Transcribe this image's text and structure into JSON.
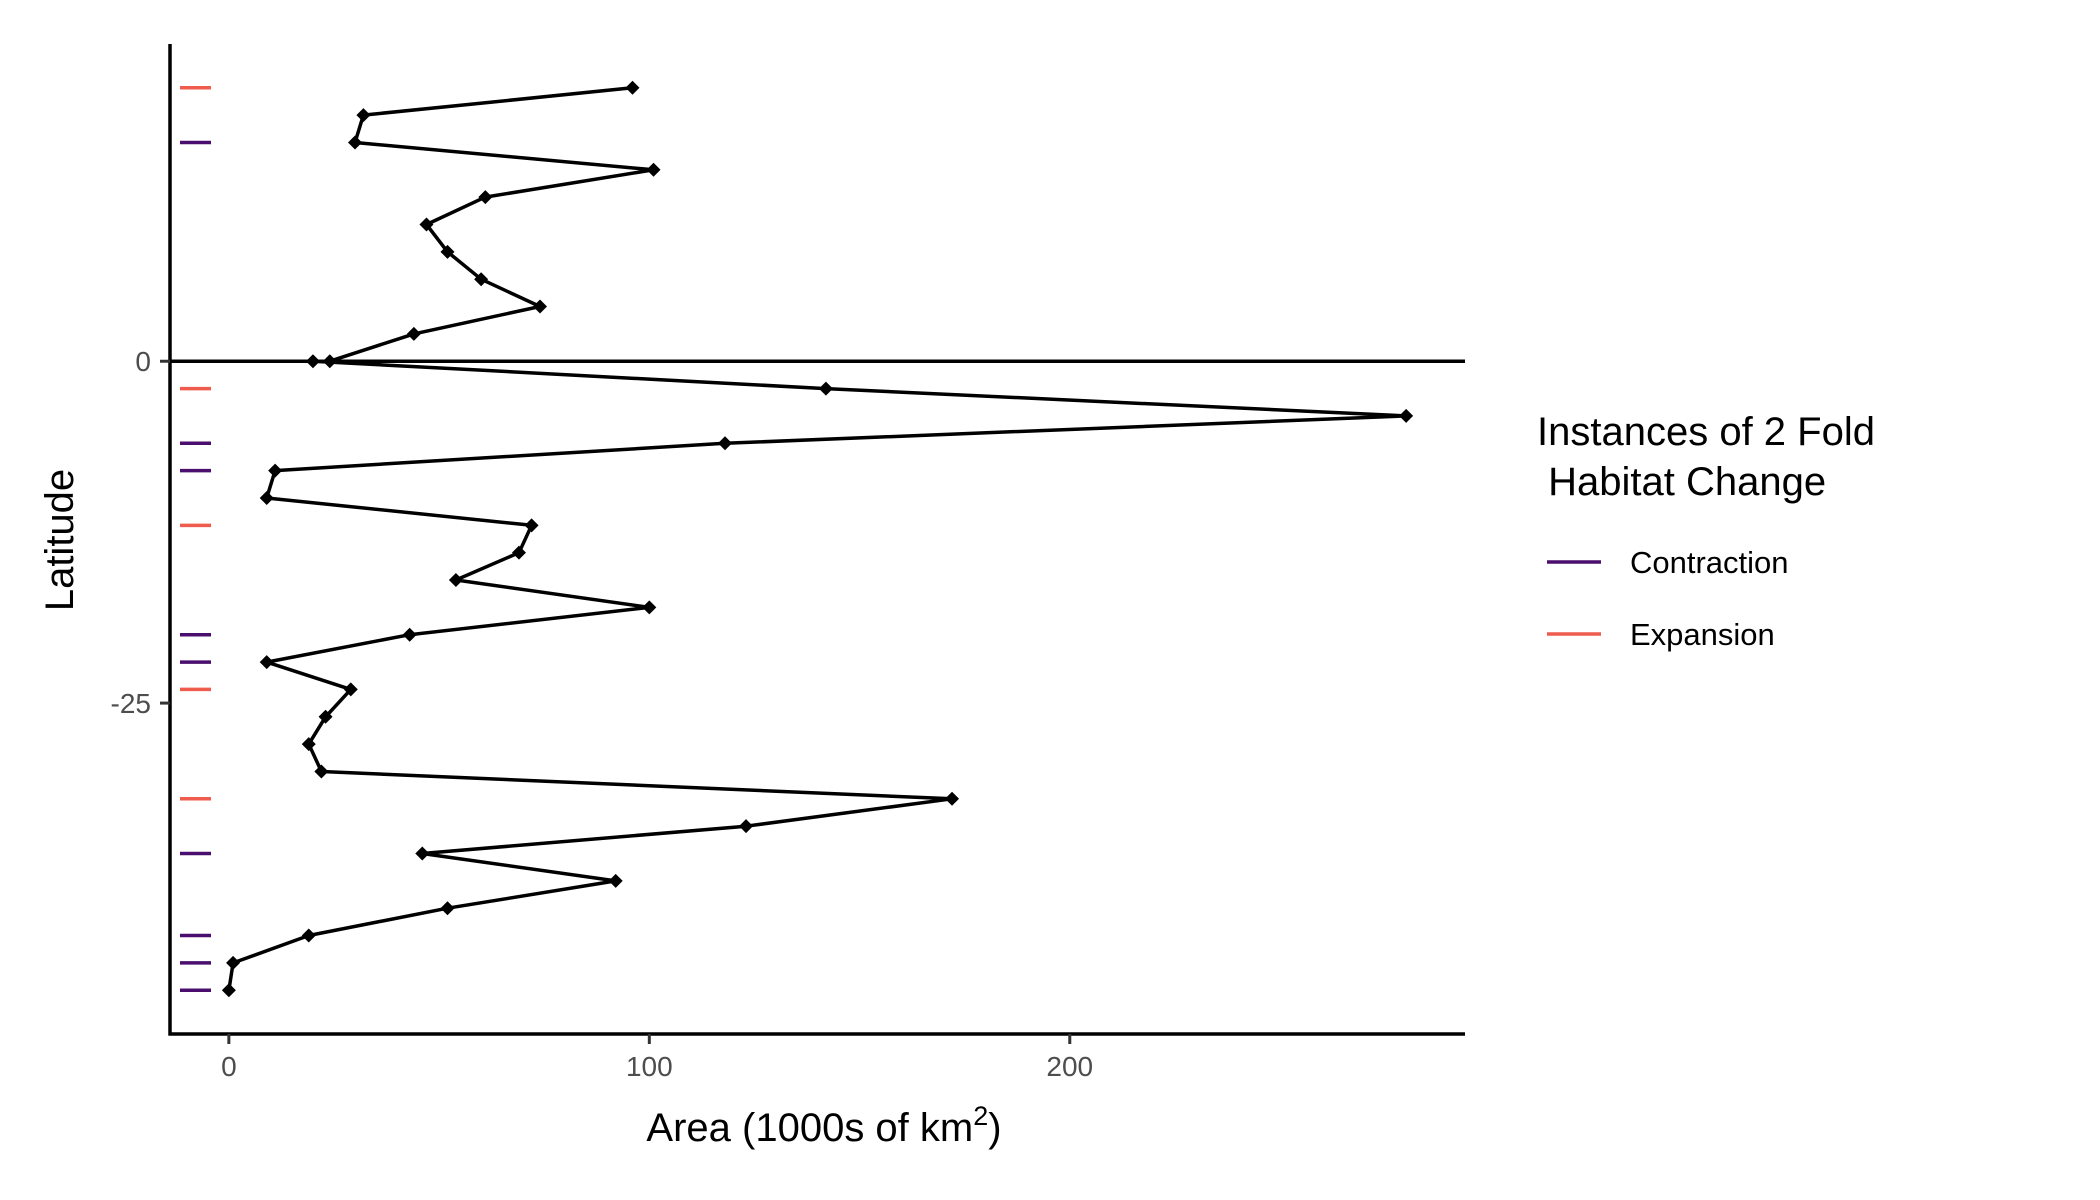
{
  "chart_data": {
    "type": "line",
    "title": "",
    "xlabel": "Area (1000s of km",
    "xlabel_superscript": "2",
    "xlabel_suffix": ")",
    "ylabel": "Latitude",
    "xlim": [
      -14,
      294
    ],
    "ylim": [
      -49.2,
      23.2
    ],
    "x_ticks": [
      0,
      100,
      200
    ],
    "y_ticks": [
      0,
      -25
    ],
    "zero_line": 0,
    "grid": false,
    "line_color": "#000000",
    "series": [
      {
        "x": [
          96,
          32,
          30,
          101,
          61,
          47,
          52,
          60,
          74,
          44,
          24,
          20,
          142,
          280,
          118,
          11,
          9,
          72,
          69,
          54,
          100,
          43,
          9,
          29,
          23,
          19,
          22,
          172,
          123,
          46,
          92,
          52,
          19,
          1,
          0
        ],
        "y": [
          20,
          18,
          16,
          14,
          12,
          10,
          8,
          6,
          4,
          2,
          0,
          0,
          -2,
          -4,
          -6,
          -8,
          -10,
          -12,
          -14,
          -16,
          -18,
          -20,
          -22,
          -24,
          -26,
          -28,
          -30,
          -32,
          -34,
          -36,
          -38,
          -40,
          -42,
          -44,
          -46
        ]
      }
    ],
    "rug": [
      {
        "y": 20,
        "type": "Expansion"
      },
      {
        "y": 16,
        "type": "Contraction"
      },
      {
        "y": -2,
        "type": "Expansion"
      },
      {
        "y": -6,
        "type": "Contraction"
      },
      {
        "y": -8,
        "type": "Contraction"
      },
      {
        "y": -12,
        "type": "Expansion"
      },
      {
        "y": -20,
        "type": "Contraction"
      },
      {
        "y": -22,
        "type": "Contraction"
      },
      {
        "y": -24,
        "type": "Expansion"
      },
      {
        "y": -32,
        "type": "Expansion"
      },
      {
        "y": -36,
        "type": "Contraction"
      },
      {
        "y": -42,
        "type": "Contraction"
      },
      {
        "y": -44,
        "type": "Contraction"
      },
      {
        "y": -46,
        "type": "Contraction"
      }
    ],
    "legend": {
      "title_line1": "Instances of 2 Fold",
      "title_line2": " Habitat Change",
      "placement": "right",
      "items": [
        {
          "label": "Contraction",
          "color": "#4a0f6e"
        },
        {
          "label": "Expansion",
          "color": "#ef5b4d"
        }
      ]
    }
  }
}
